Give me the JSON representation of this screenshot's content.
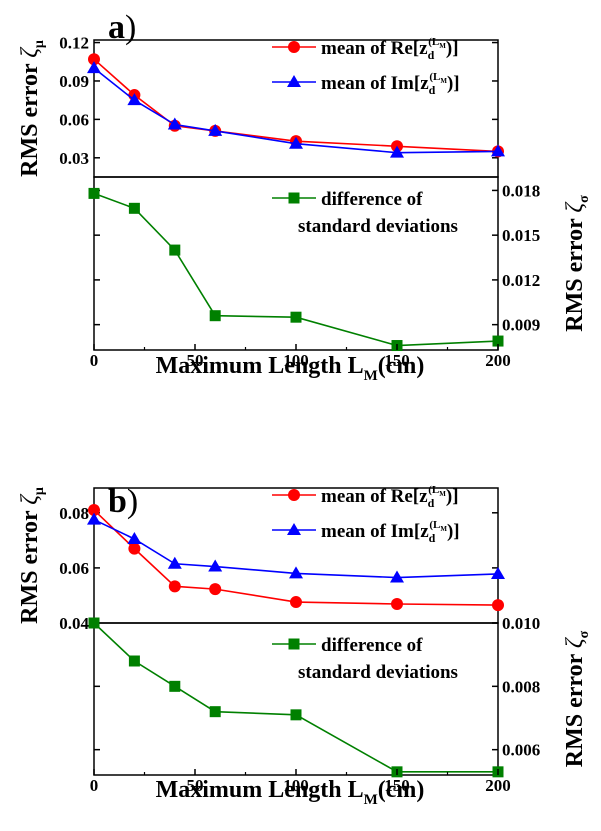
{
  "colors": {
    "re_series": "#ff0000",
    "im_series": "#0000ff",
    "diff_series": "#008000",
    "axis": "#000000"
  },
  "chart_data": [
    {
      "panel_label": "a",
      "type": "line",
      "x": [
        0,
        20,
        40,
        60,
        100,
        150,
        200
      ],
      "xlabel_main": "Maximum Length",
      "xlabel_symbol": "L",
      "xlabel_sub": "M",
      "xlabel_unit": "(cm)",
      "xticks": [
        0,
        50,
        100,
        150,
        200
      ],
      "xlim": [
        0,
        200
      ],
      "top": {
        "ylabel": "RMS error",
        "ylabel_symbol": "ζ",
        "ylabel_sub": "μ",
        "ylim": [
          0.015,
          0.122
        ],
        "yticks": [
          "0.03",
          "0.06",
          "0.09",
          "0.12"
        ],
        "legend": "top-right",
        "series": [
          {
            "name": "mean of Re[z",
            "name_sub": "d",
            "name_sup": "(L",
            "name_sup_sub": "M",
            "name_end": ")]",
            "marker": "circle",
            "values": [
              0.107,
              0.079,
              0.055,
              0.051,
              0.043,
              0.039,
              0.035
            ]
          },
          {
            "name": "mean of Im[z",
            "name_sub": "d",
            "name_sup": "(L",
            "name_sup_sub": "M",
            "name_end": ")]",
            "marker": "triangle",
            "values": [
              0.1,
              0.075,
              0.056,
              0.051,
              0.041,
              0.034,
              0.035
            ]
          }
        ]
      },
      "bottom": {
        "ylabel": "RMS error",
        "ylabel_symbol": "ζ",
        "ylabel_sub": "σ",
        "ylim": [
          0.0073,
          0.0189
        ],
        "yticks": [
          "0.009",
          "0.012",
          "0.015",
          "0.018"
        ],
        "legend": "top-right",
        "series": [
          {
            "name_line1": "difference of",
            "name_line2": "standard deviations",
            "marker": "square",
            "values": [
              0.0178,
              0.0168,
              0.014,
              0.0096,
              0.0095,
              0.0076,
              0.0079
            ]
          }
        ]
      }
    },
    {
      "panel_label": "b",
      "type": "line",
      "x": [
        0,
        20,
        40,
        60,
        100,
        150,
        200
      ],
      "xlabel_main": "Maximum Length",
      "xlabel_symbol": "L",
      "xlabel_sub": "M",
      "xlabel_unit": "(cm)",
      "xticks": [
        0,
        50,
        100,
        150,
        200
      ],
      "xlim": [
        0,
        200
      ],
      "top": {
        "ylabel": "RMS error",
        "ylabel_symbol": "ζ",
        "ylabel_sub": "μ",
        "ylim": [
          0.04,
          0.089
        ],
        "yticks": [
          "0.04",
          "0.06",
          "0.08"
        ],
        "legend": "top-right",
        "series": [
          {
            "name": "mean of Re[z",
            "name_sub": "d",
            "name_sup": "(L",
            "name_sup_sub": "M",
            "name_end": ")]",
            "marker": "circle",
            "values": [
              0.081,
              0.067,
              0.0533,
              0.0523,
              0.0476,
              0.0469,
              0.0465
            ]
          },
          {
            "name": "mean of Im[z",
            "name_sub": "d",
            "name_sup": "(L",
            "name_sup_sub": "M",
            "name_end": ")]",
            "marker": "triangle",
            "values": [
              0.0775,
              0.0705,
              0.0615,
              0.0605,
              0.058,
              0.0565,
              0.0578
            ]
          }
        ]
      },
      "bottom": {
        "ylabel": "RMS error",
        "ylabel_symbol": "ζ",
        "ylabel_sub": "σ",
        "ylim": [
          0.0052,
          0.01
        ],
        "yticks": [
          "0.006",
          "0.008",
          "0.010"
        ],
        "legend": "top-right",
        "series": [
          {
            "name_line1": "difference of",
            "name_line2": "standard deviations",
            "marker": "square",
            "values": [
              0.01,
              0.0088,
              0.008,
              0.0072,
              0.0071,
              0.0053,
              0.0053
            ]
          }
        ]
      }
    }
  ]
}
